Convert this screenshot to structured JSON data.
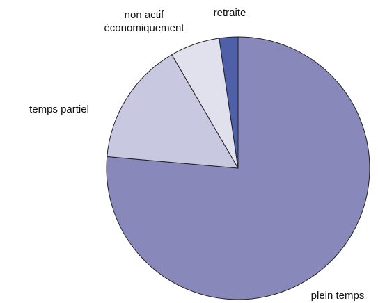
{
  "chart_data": {
    "type": "pie",
    "categories": [
      "plein temps",
      "temps partiel",
      "non actif économiquement",
      "retraite"
    ],
    "values": [
      76.4,
      15.2,
      6.1,
      2.3
    ],
    "colors": [
      "#8888bb",
      "#c8c8e1",
      "#e1e1ee",
      "#5060a8"
    ]
  }
}
